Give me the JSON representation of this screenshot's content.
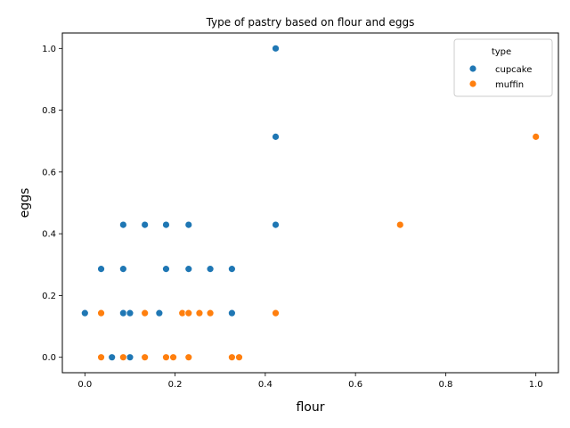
{
  "chart_data": {
    "type": "scatter",
    "title": "Type of pastry based on flour and eggs",
    "xlabel": "flour",
    "ylabel": "eggs",
    "xlim": [
      -0.05,
      1.05
    ],
    "ylim": [
      -0.05,
      1.05
    ],
    "xticks": [
      "0.0",
      "0.2",
      "0.4",
      "0.6",
      "0.8",
      "1.0"
    ],
    "yticks": [
      "0.0",
      "0.2",
      "0.4",
      "0.6",
      "0.8",
      "1.0"
    ],
    "xtick_values": [
      0.0,
      0.2,
      0.4,
      0.6,
      0.8,
      1.0
    ],
    "ytick_values": [
      0.0,
      0.2,
      0.4,
      0.6,
      0.8,
      1.0
    ],
    "legend": {
      "title": "type",
      "position": "top-right"
    },
    "series": [
      {
        "name": "cupcake",
        "color": "#1f77b4",
        "points": [
          [
            0.0,
            0.143
          ],
          [
            0.036,
            0.286
          ],
          [
            0.06,
            0.0
          ],
          [
            0.085,
            0.143
          ],
          [
            0.085,
            0.286
          ],
          [
            0.085,
            0.429
          ],
          [
            0.1,
            0.0
          ],
          [
            0.1,
            0.143
          ],
          [
            0.133,
            0.429
          ],
          [
            0.165,
            0.143
          ],
          [
            0.18,
            0.286
          ],
          [
            0.18,
            0.429
          ],
          [
            0.23,
            0.286
          ],
          [
            0.23,
            0.429
          ],
          [
            0.278,
            0.286
          ],
          [
            0.326,
            0.143
          ],
          [
            0.326,
            0.286
          ],
          [
            0.423,
            0.429
          ],
          [
            0.423,
            0.714
          ],
          [
            0.423,
            1.0
          ]
        ]
      },
      {
        "name": "muffin",
        "color": "#ff7f0e",
        "points": [
          [
            0.036,
            0.0
          ],
          [
            0.036,
            0.143
          ],
          [
            0.085,
            0.0
          ],
          [
            0.133,
            0.0
          ],
          [
            0.133,
            0.143
          ],
          [
            0.18,
            0.0
          ],
          [
            0.196,
            0.0
          ],
          [
            0.216,
            0.143
          ],
          [
            0.23,
            0.0
          ],
          [
            0.23,
            0.143
          ],
          [
            0.254,
            0.143
          ],
          [
            0.278,
            0.143
          ],
          [
            0.326,
            0.0
          ],
          [
            0.342,
            0.0
          ],
          [
            0.423,
            0.143
          ],
          [
            0.699,
            0.429
          ],
          [
            1.0,
            0.714
          ]
        ]
      }
    ]
  }
}
